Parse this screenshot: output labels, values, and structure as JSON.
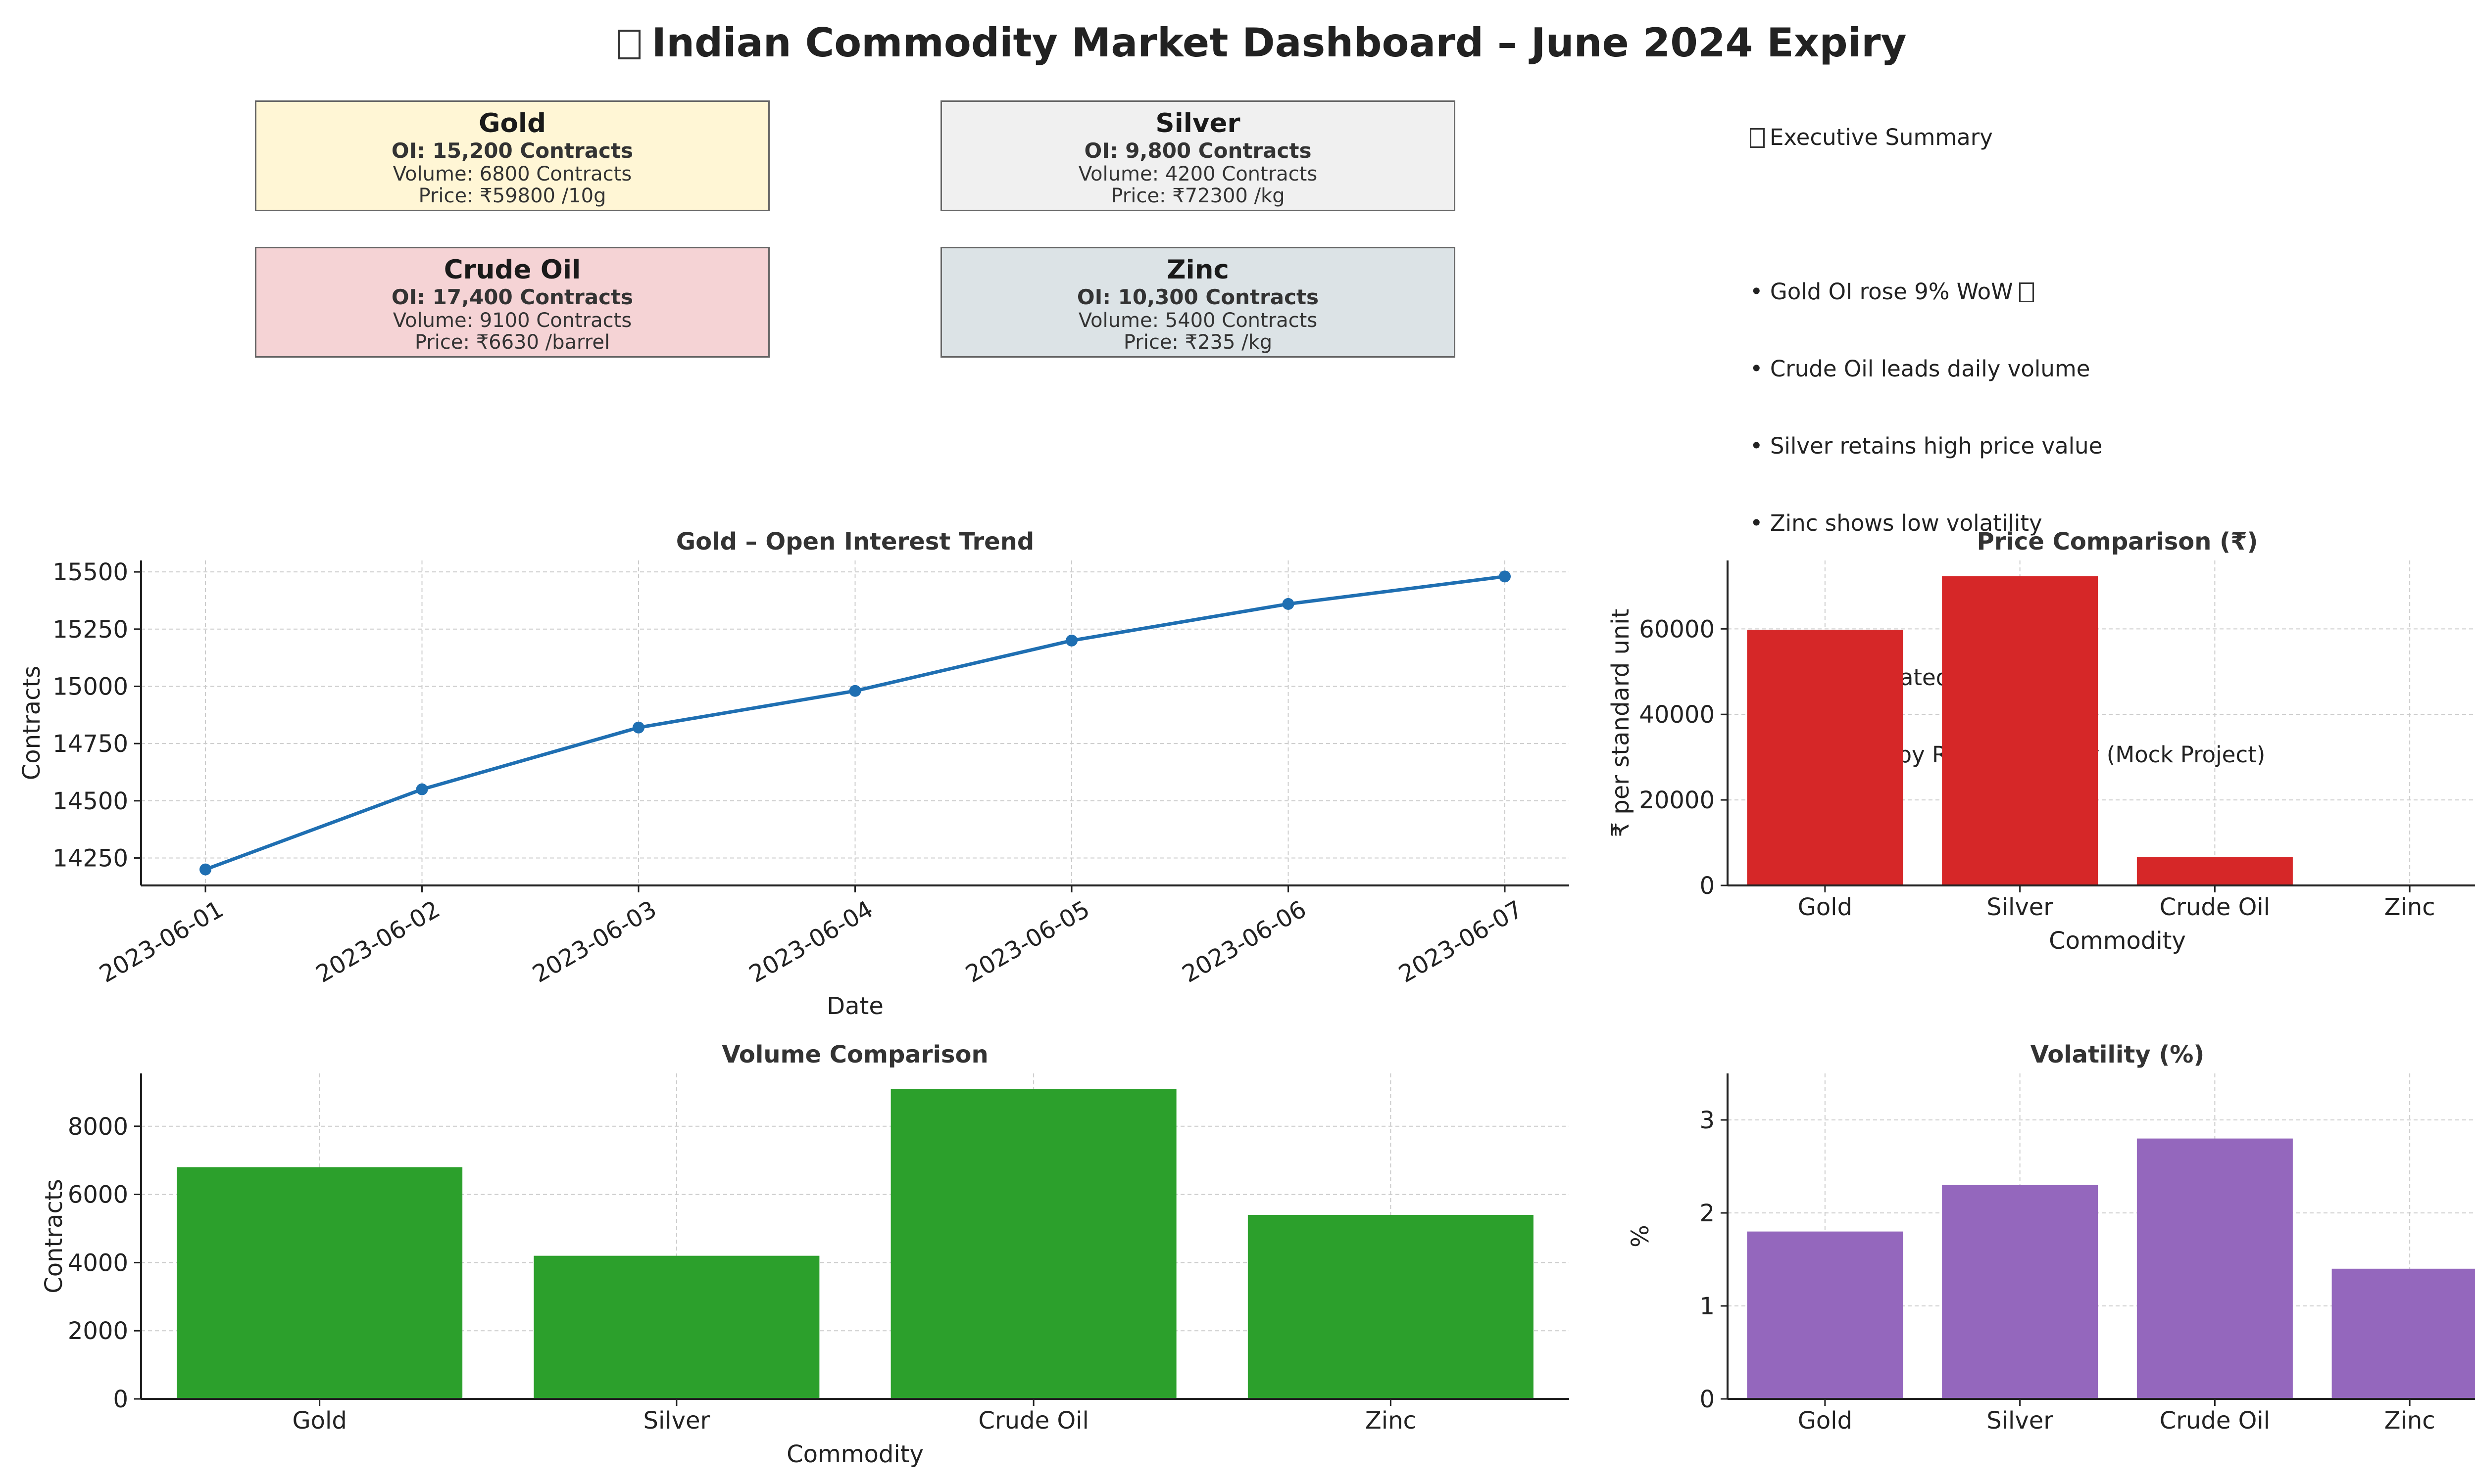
{
  "title": "Indian Commodity Market Dashboard – June 2024 Expiry",
  "cards": [
    {
      "name": "Gold",
      "oi": "OI: 15,200 Contracts",
      "volume": "Volume: 6800 Contracts",
      "price": "Price: ₹59800 /10g",
      "bg": "#fff6d5"
    },
    {
      "name": "Silver",
      "oi": "OI: 9,800 Contracts",
      "volume": "Volume: 4200 Contracts",
      "price": "Price: ₹72300 /kg",
      "bg": "#f0f0f0"
    },
    {
      "name": "Crude Oil",
      "oi": "OI: 17,400 Contracts",
      "volume": "Volume: 9100 Contracts",
      "price": "Price: ₹6630 /barrel",
      "bg": "#f5d3d5"
    },
    {
      "name": "Zinc",
      "oi": "OI: 10,300 Contracts",
      "volume": "Volume: 5400 Contracts",
      "price": "Price: ₹235 /kg",
      "bg": "#dce3e6"
    }
  ],
  "summary": {
    "heading": "Executive Summary",
    "bullets": [
      "• Gold OI rose 9% WoW",
      "• Crude Oil leads daily volume",
      "• Silver retains high price value",
      "• Zinc shows low volatility"
    ],
    "data_note": "Data: Simulated MCX Sample",
    "credit": "Dashboard by Rajkiran Reddy (Mock Project)"
  },
  "chart_data": [
    {
      "type": "line",
      "title": "Gold – Open Interest Trend",
      "xlabel": "Date",
      "ylabel": "Contracts",
      "x": [
        "2023-06-01",
        "2023-06-02",
        "2023-06-03",
        "2023-06-04",
        "2023-06-05",
        "2023-06-06",
        "2023-06-07"
      ],
      "values": [
        14200,
        14550,
        14820,
        14980,
        15200,
        15360,
        15480
      ],
      "ylim": [
        14130,
        15550
      ],
      "yticks": [
        14250,
        14500,
        14750,
        15000,
        15250,
        15500
      ],
      "grid": true,
      "color": "#1f6fb2"
    },
    {
      "type": "bar",
      "title": "Price Comparison (₹)",
      "xlabel": "Commodity",
      "ylabel": "₹ per standard unit",
      "categories": [
        "Gold",
        "Silver",
        "Crude Oil",
        "Zinc"
      ],
      "values": [
        59800,
        72300,
        6630,
        235
      ],
      "ylim": [
        0,
        76000
      ],
      "yticks": [
        0,
        20000,
        40000,
        60000
      ],
      "grid": true,
      "color": "#d62728"
    },
    {
      "type": "bar",
      "title": "Volume Comparison",
      "xlabel": "Commodity",
      "ylabel": "Contracts",
      "categories": [
        "Gold",
        "Silver",
        "Crude Oil",
        "Zinc"
      ],
      "values": [
        6800,
        4200,
        9100,
        5400
      ],
      "ylim": [
        0,
        9550
      ],
      "yticks": [
        0,
        2000,
        4000,
        6000,
        8000
      ],
      "grid": true,
      "color": "#2ca02c"
    },
    {
      "type": "bar",
      "title": "Volatility (%)",
      "xlabel": "",
      "ylabel": "%",
      "categories": [
        "Gold",
        "Silver",
        "Crude Oil",
        "Zinc"
      ],
      "values": [
        1.8,
        2.3,
        2.8,
        1.4
      ],
      "ylim": [
        0,
        3.5
      ],
      "yticks": [
        0,
        1,
        2,
        3
      ],
      "grid": true,
      "color": "#9467bd"
    }
  ]
}
